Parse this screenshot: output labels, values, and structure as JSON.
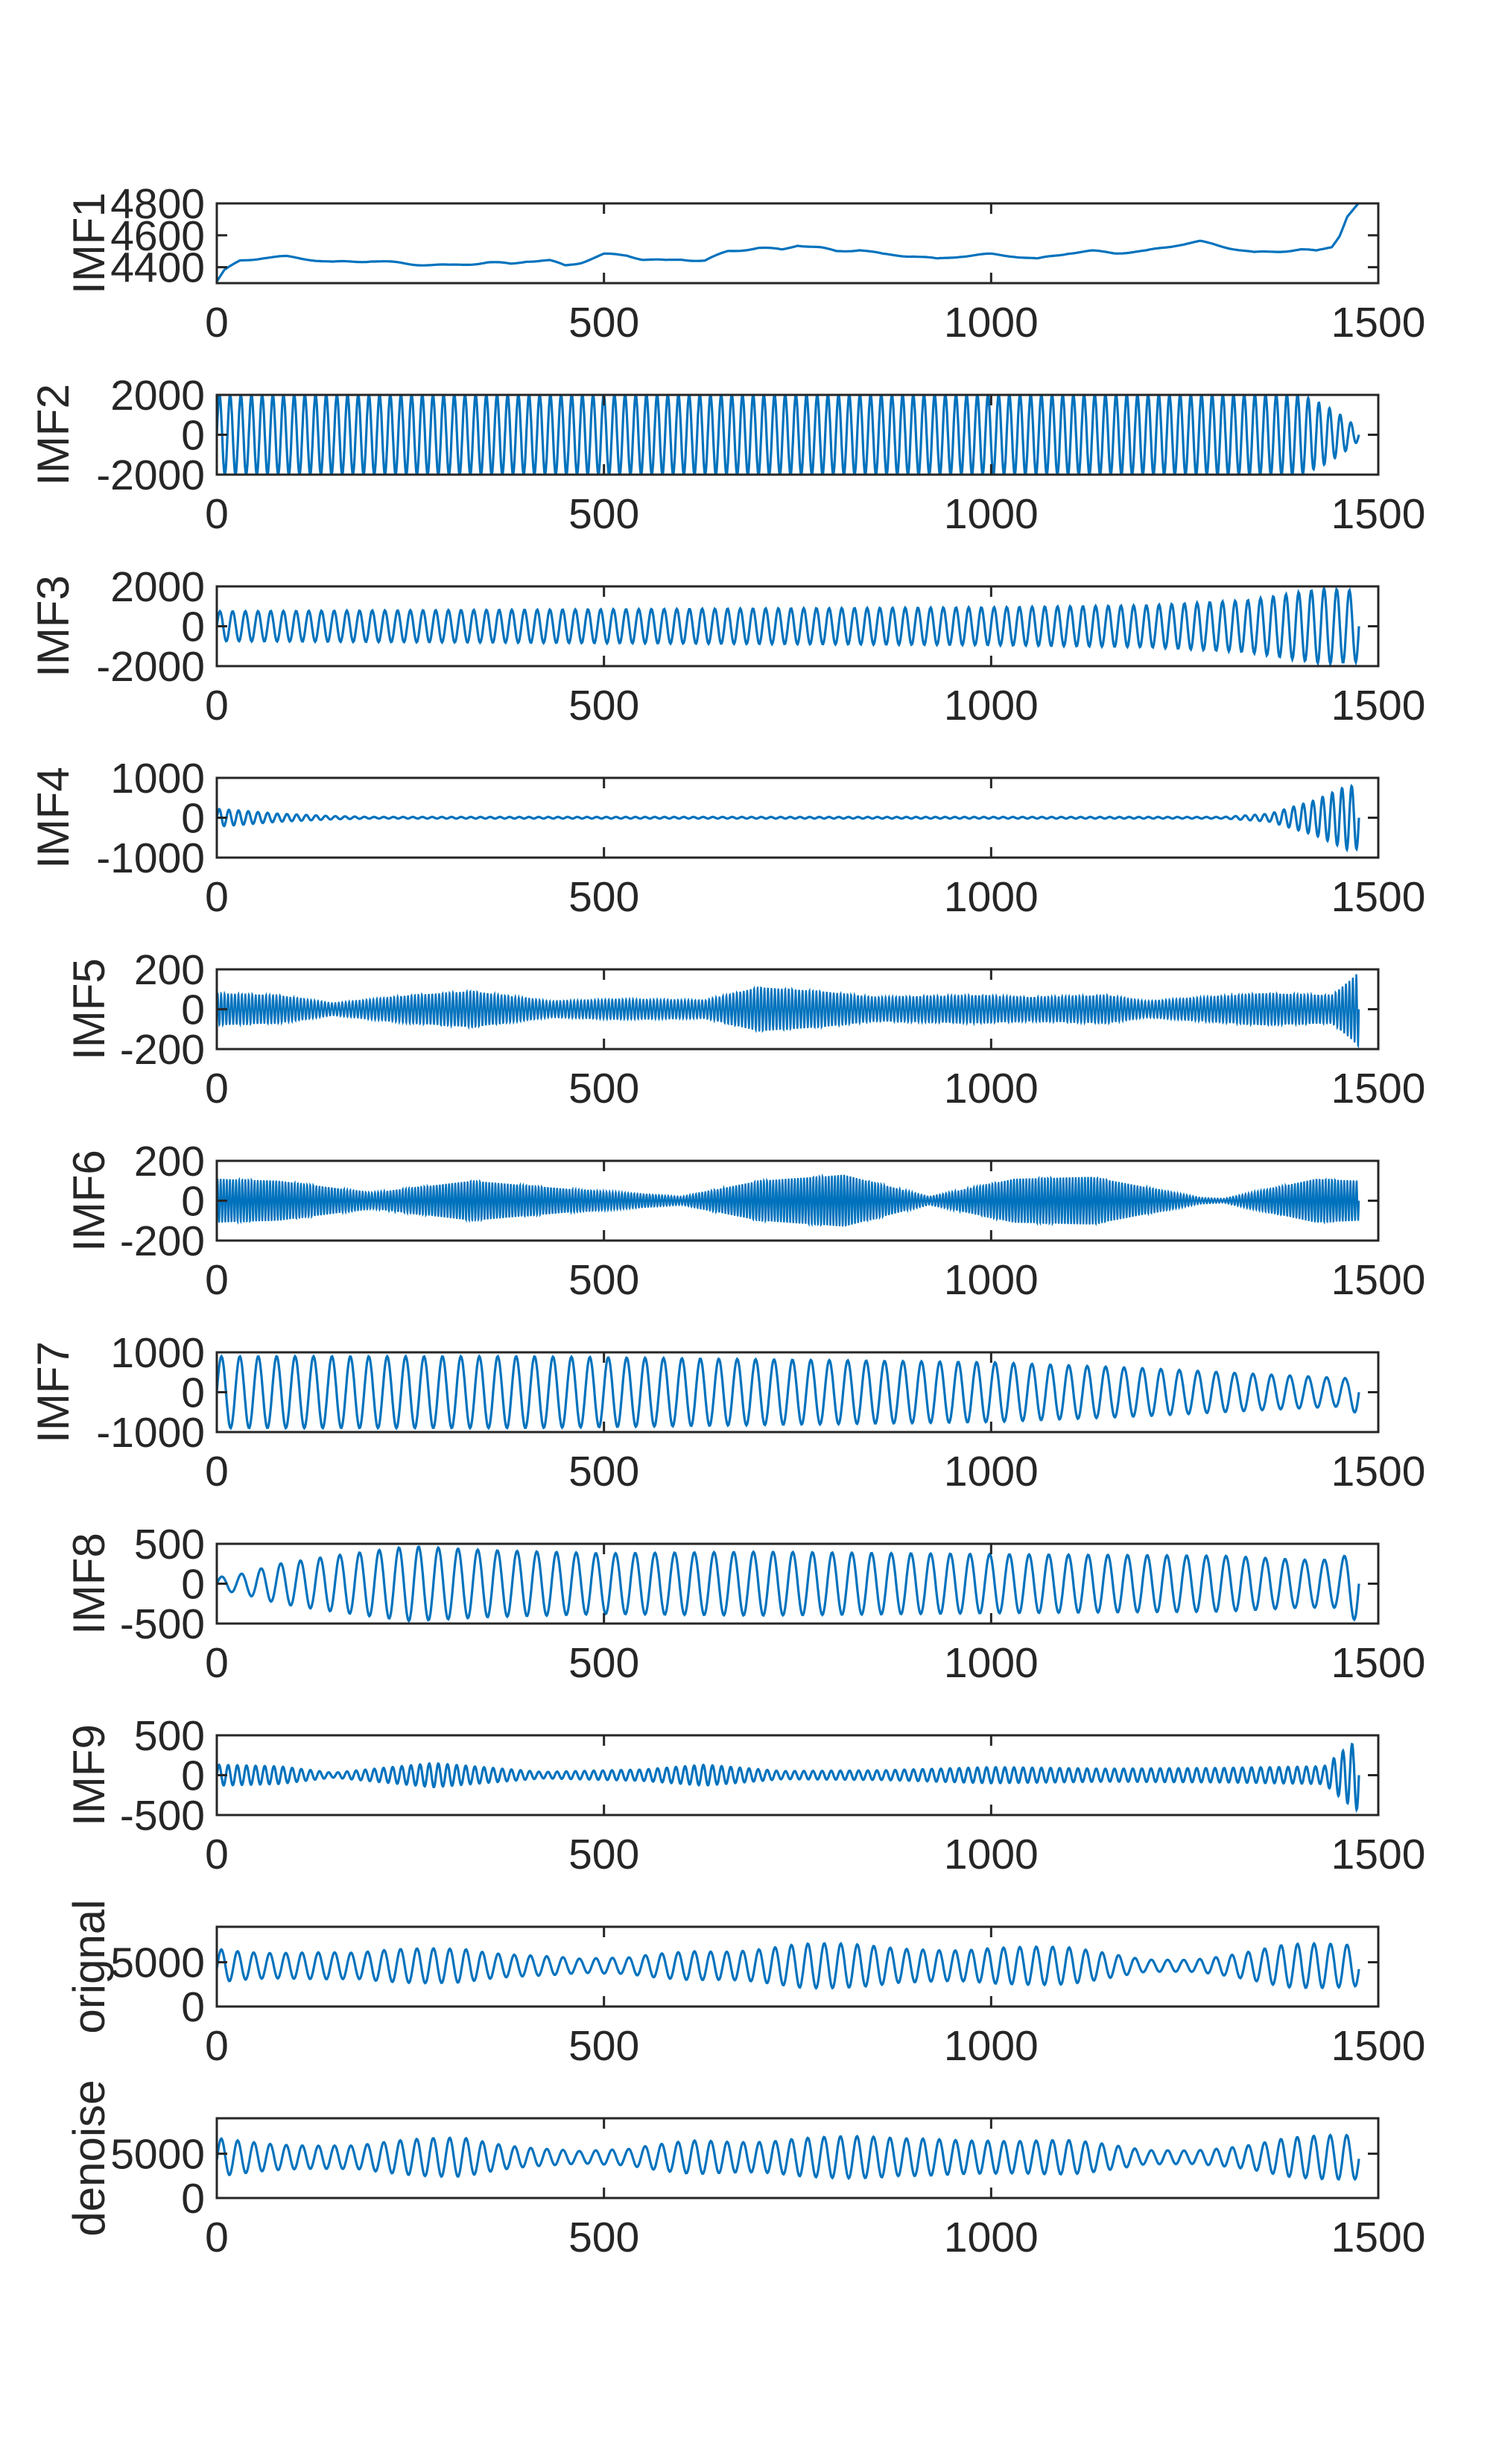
{
  "figure": {
    "line_color": "#0072BD",
    "axis_color": "#262626"
  },
  "chart_data": [
    {
      "type": "line",
      "ylabel": "IMF1",
      "xlim": [
        0,
        1500
      ],
      "ylim": [
        4300,
        4800
      ],
      "xticks": [
        0,
        500,
        1000,
        1500
      ],
      "yticks": [
        4400,
        4600,
        4800
      ],
      "xtick_labels": [
        "0",
        "500",
        "1000",
        "1500"
      ],
      "ytick_labels": [
        "4400",
        "4600",
        "4800"
      ],
      "n_points": 1475,
      "series": [
        {
          "x": [
            0,
            10,
            30,
            60,
            90,
            120,
            150,
            200,
            250,
            300,
            350,
            380,
            400,
            430,
            450,
            470,
            500,
            530,
            550,
            580,
            600,
            630,
            660,
            700,
            730,
            750,
            780,
            800,
            830,
            860,
            900,
            930,
            960,
            1000,
            1030,
            1060,
            1100,
            1130,
            1160,
            1200,
            1240,
            1270,
            1300,
            1340,
            1370,
            1400,
            1420,
            1440,
            1450,
            1460,
            1475
          ],
          "values": [
            4310,
            4380,
            4440,
            4460,
            4465,
            4450,
            4430,
            4440,
            4420,
            4410,
            4430,
            4420,
            4440,
            4440,
            4410,
            4430,
            4480,
            4475,
            4450,
            4440,
            4450,
            4440,
            4500,
            4520,
            4510,
            4540,
            4520,
            4500,
            4510,
            4480,
            4470,
            4450,
            4470,
            4480,
            4470,
            4450,
            4490,
            4500,
            4490,
            4500,
            4540,
            4560,
            4530,
            4490,
            4500,
            4510,
            4500,
            4530,
            4600,
            4720,
            4800
          ]
        }
      ]
    },
    {
      "type": "line",
      "ylabel": "IMF2",
      "xlim": [
        0,
        1500
      ],
      "ylim": [
        -2000,
        2000
      ],
      "xticks": [
        0,
        500,
        1000,
        1500
      ],
      "yticks": [
        -2000,
        0,
        2000
      ],
      "xtick_labels": [
        "0",
        "500",
        "1000",
        "1500"
      ],
      "ytick_labels": [
        "-2000",
        "0",
        "2000"
      ],
      "n_points": 1475,
      "cycles": 107,
      "series": [
        {
          "envelope_x": [
            0,
            1400,
            1430,
            1455,
            1475
          ],
          "envelope": [
            2000,
            2000,
            1500,
            900,
            300
          ]
        }
      ]
    },
    {
      "type": "line",
      "ylabel": "IMF3",
      "xlim": [
        0,
        1500
      ],
      "ylim": [
        -2000,
        2000
      ],
      "xticks": [
        0,
        500,
        1000,
        1500
      ],
      "yticks": [
        -2000,
        0,
        2000
      ],
      "xtick_labels": [
        "0",
        "500",
        "1000",
        "1500"
      ],
      "ytick_labels": [
        "-2000",
        "0",
        "2000"
      ],
      "n_points": 1475,
      "cycles": 90,
      "series": [
        {
          "envelope_x": [
            0,
            500,
            1000,
            1200,
            1330,
            1430,
            1470
          ],
          "envelope": [
            750,
            850,
            950,
            1050,
            1300,
            1900,
            1800
          ]
        }
      ]
    },
    {
      "type": "line",
      "ylabel": "IMF4",
      "xlim": [
        0,
        1500
      ],
      "ylim": [
        -1000,
        1000
      ],
      "xticks": [
        0,
        500,
        1000,
        1500
      ],
      "yticks": [
        -1000,
        0,
        1000
      ],
      "xtick_labels": [
        "0",
        "500",
        "1000",
        "1500"
      ],
      "ytick_labels": [
        "-1000",
        "0",
        "1000"
      ],
      "n_points": 1475,
      "cycles": 118,
      "series": [
        {
          "envelope_x": [
            0,
            30,
            80,
            150,
            200,
            1300,
            1360,
            1420,
            1460,
            1475
          ],
          "envelope": [
            220,
            180,
            100,
            40,
            20,
            20,
            100,
            450,
            800,
            780
          ]
        }
      ]
    },
    {
      "type": "line",
      "ylabel": "IMF5",
      "xlim": [
        0,
        1500
      ],
      "ylim": [
        -200,
        200
      ],
      "xticks": [
        0,
        500,
        1000,
        1500
      ],
      "yticks": [
        -200,
        0,
        200
      ],
      "xtick_labels": [
        "0",
        "500",
        "1000",
        "1500"
      ],
      "ytick_labels": [
        "-200",
        "0",
        "200"
      ],
      "n_points": 1475,
      "cycles": 330,
      "series": [
        {
          "envelope_x": [
            0,
            80,
            150,
            250,
            330,
            430,
            520,
            630,
            700,
            780,
            850,
            980,
            1050,
            1150,
            1200,
            1350,
            1440,
            1465,
            1475
          ],
          "envelope": [
            80,
            70,
            30,
            70,
            90,
            40,
            50,
            45,
            110,
            90,
            60,
            70,
            60,
            70,
            40,
            80,
            70,
            150,
            190
          ]
        }
      ]
    },
    {
      "type": "line",
      "ylabel": "IMF6",
      "xlim": [
        0,
        1500
      ],
      "ylim": [
        -200,
        200
      ],
      "xticks": [
        0,
        500,
        1000,
        1500
      ],
      "yticks": [
        -200,
        0,
        200
      ],
      "xtick_labels": [
        "0",
        "500",
        "1000",
        "1500"
      ],
      "ytick_labels": [
        "-200",
        "0",
        "200"
      ],
      "n_points": 1475,
      "cycles": 370,
      "series": [
        {
          "envelope_x": [
            0,
            80,
            200,
            330,
            450,
            600,
            700,
            810,
            920,
            1030,
            1130,
            1270,
            1300,
            1420,
            1475
          ],
          "envelope": [
            110,
            100,
            40,
            100,
            60,
            20,
            100,
            130,
            20,
            110,
            120,
            15,
            10,
            110,
            100
          ]
        }
      ]
    },
    {
      "type": "line",
      "ylabel": "IMF7",
      "xlim": [
        0,
        1500
      ],
      "ylim": [
        -1000,
        1000
      ],
      "xticks": [
        0,
        500,
        1000,
        1500
      ],
      "yticks": [
        -1000,
        0,
        1000
      ],
      "xtick_labels": [
        "0",
        "500",
        "1000",
        "1500"
      ],
      "ytick_labels": [
        "-1000",
        "0",
        "1000"
      ],
      "n_points": 1475,
      "cycles": 62,
      "series": [
        {
          "envelope_x": [
            0,
            400,
            800,
            1000,
            1200,
            1350,
            1460,
            1475
          ],
          "envelope": [
            900,
            900,
            800,
            750,
            600,
            450,
            350,
            600
          ]
        }
      ]
    },
    {
      "type": "line",
      "ylabel": "IMF8",
      "xlim": [
        0,
        1500
      ],
      "ylim": [
        -500,
        500
      ],
      "xticks": [
        0,
        500,
        1000,
        1500
      ],
      "yticks": [
        -500,
        0,
        500
      ],
      "xtick_labels": [
        "0",
        "500",
        "1000",
        "1500"
      ],
      "ytick_labels": [
        "-500",
        "0",
        "500"
      ],
      "n_points": 1475,
      "cycles": 58,
      "series": [
        {
          "envelope_x": [
            0,
            30,
            80,
            150,
            250,
            350,
            500,
            700,
            1000,
            1300,
            1400,
            1450,
            1475
          ],
          "envelope": [
            80,
            120,
            250,
            350,
            470,
            420,
            380,
            400,
            370,
            350,
            300,
            300,
            500
          ]
        }
      ]
    },
    {
      "type": "line",
      "ylabel": "IMF9",
      "xlim": [
        0,
        1500
      ],
      "ylim": [
        -500,
        500
      ],
      "xticks": [
        0,
        500,
        1000,
        1500
      ],
      "yticks": [
        -500,
        0,
        500
      ],
      "xtick_labels": [
        "0",
        "500",
        "1000",
        "1500"
      ],
      "ytick_labels": [
        "-500",
        "0",
        "500"
      ],
      "n_points": 1475,
      "cycles": 125,
      "series": [
        {
          "envelope_x": [
            0,
            80,
            150,
            280,
            420,
            550,
            630,
            730,
            860,
            1000,
            1150,
            1300,
            1430,
            1460,
            1475
          ],
          "envelope": [
            130,
            110,
            30,
            150,
            40,
            70,
            130,
            50,
            60,
            100,
            80,
            90,
            110,
            350,
            450
          ]
        }
      ]
    },
    {
      "type": "line",
      "ylabel": "orignal",
      "xlim": [
        0,
        1500
      ],
      "ylim": [
        0,
        9000
      ],
      "xticks": [
        0,
        500,
        1000,
        1500
      ],
      "yticks": [
        0,
        5000
      ],
      "xtick_labels": [
        "0",
        "500",
        "1000",
        "1500"
      ],
      "ytick_labels": [
        "0",
        "5000"
      ],
      "n_points": 1475,
      "cycles": 70,
      "series": [
        {
          "baseline": 4600,
          "envelope_x": [
            0,
            100,
            180,
            320,
            470,
            530,
            620,
            750,
            880,
            1000,
            1100,
            1200,
            1260,
            1380,
            1475
          ],
          "envelope": [
            2800,
            2400,
            1800,
            3000,
            1000,
            1100,
            2600,
            3300,
            2600,
            3300,
            2500,
            1000,
            1200,
            3000,
            3000
          ]
        }
      ]
    },
    {
      "type": "line",
      "ylabel": "denoise",
      "xlim": [
        0,
        1500
      ],
      "ylim": [
        0,
        9000
      ],
      "xticks": [
        0,
        500,
        1000,
        1500
      ],
      "yticks": [
        0,
        5000
      ],
      "xtick_labels": [
        "0",
        "500",
        "1000",
        "1500"
      ],
      "ytick_labels": [
        "0",
        "5000"
      ],
      "n_points": 1475,
      "cycles": 70,
      "series": [
        {
          "baseline": 4600,
          "envelope_x": [
            0,
            100,
            180,
            320,
            470,
            530,
            620,
            750,
            880,
            1000,
            1100,
            1200,
            1260,
            1380,
            1475
          ],
          "envelope": [
            2800,
            2400,
            1800,
            3000,
            1000,
            1100,
            2600,
            3300,
            2600,
            3300,
            2500,
            1000,
            1200,
            3000,
            3000
          ]
        }
      ]
    }
  ]
}
